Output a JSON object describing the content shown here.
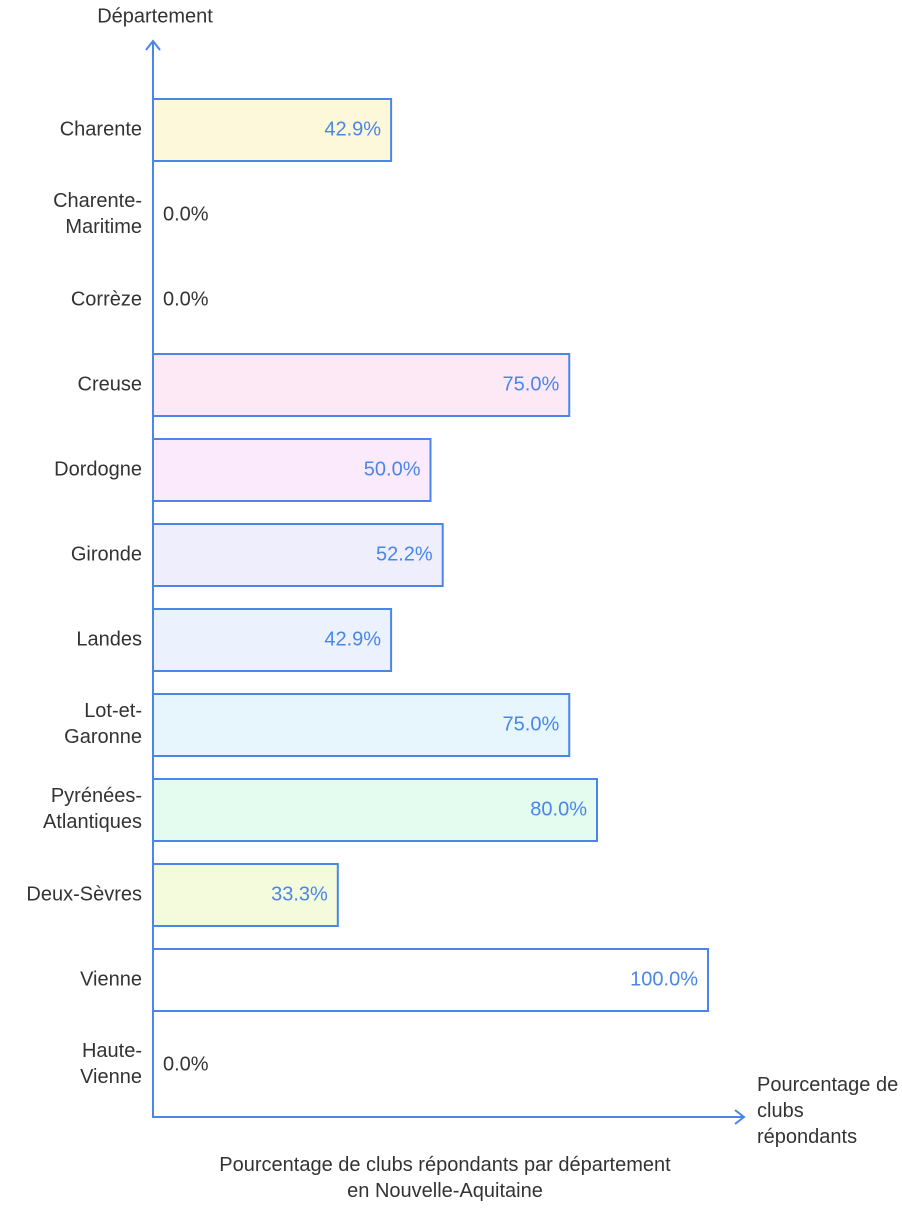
{
  "chart_data": {
    "type": "bar",
    "orientation": "horizontal",
    "title": "Pourcentage de clubs répondants par département en Nouvelle-Aquitaine",
    "y_label": "Département",
    "x_label": "Pourcentage de clubs répondants",
    "categories": [
      "Charente",
      "Charente-Maritime",
      "Corrèze",
      "Creuse",
      "Dordogne",
      "Gironde",
      "Landes",
      "Lot-et-Garonne",
      "Pyrénées-Atlantiques",
      "Deux-Sèvres",
      "Vienne",
      "Haute-Vienne"
    ],
    "values": [
      42.9,
      0,
      0,
      75,
      50,
      52.2,
      42.9,
      75,
      80,
      33.3,
      100,
      0
    ],
    "value_labels": [
      "42.9%",
      "0.0%",
      "0.0%",
      "75.0%",
      "50.0%",
      "52.2%",
      "42.9%",
      "75.0%",
      "80.0%",
      "33.3%",
      "100.0%",
      "0.0%"
    ],
    "colors": [
      "#fdf8d9",
      null,
      null,
      "#fde9f5",
      "#fbeafc",
      "#efeefc",
      "#ebf1fd",
      "#e6f6fc",
      "#e4fbef",
      "#f3fbdc",
      "#ffffff",
      null
    ],
    "xlim": [
      0,
      100
    ]
  }
}
